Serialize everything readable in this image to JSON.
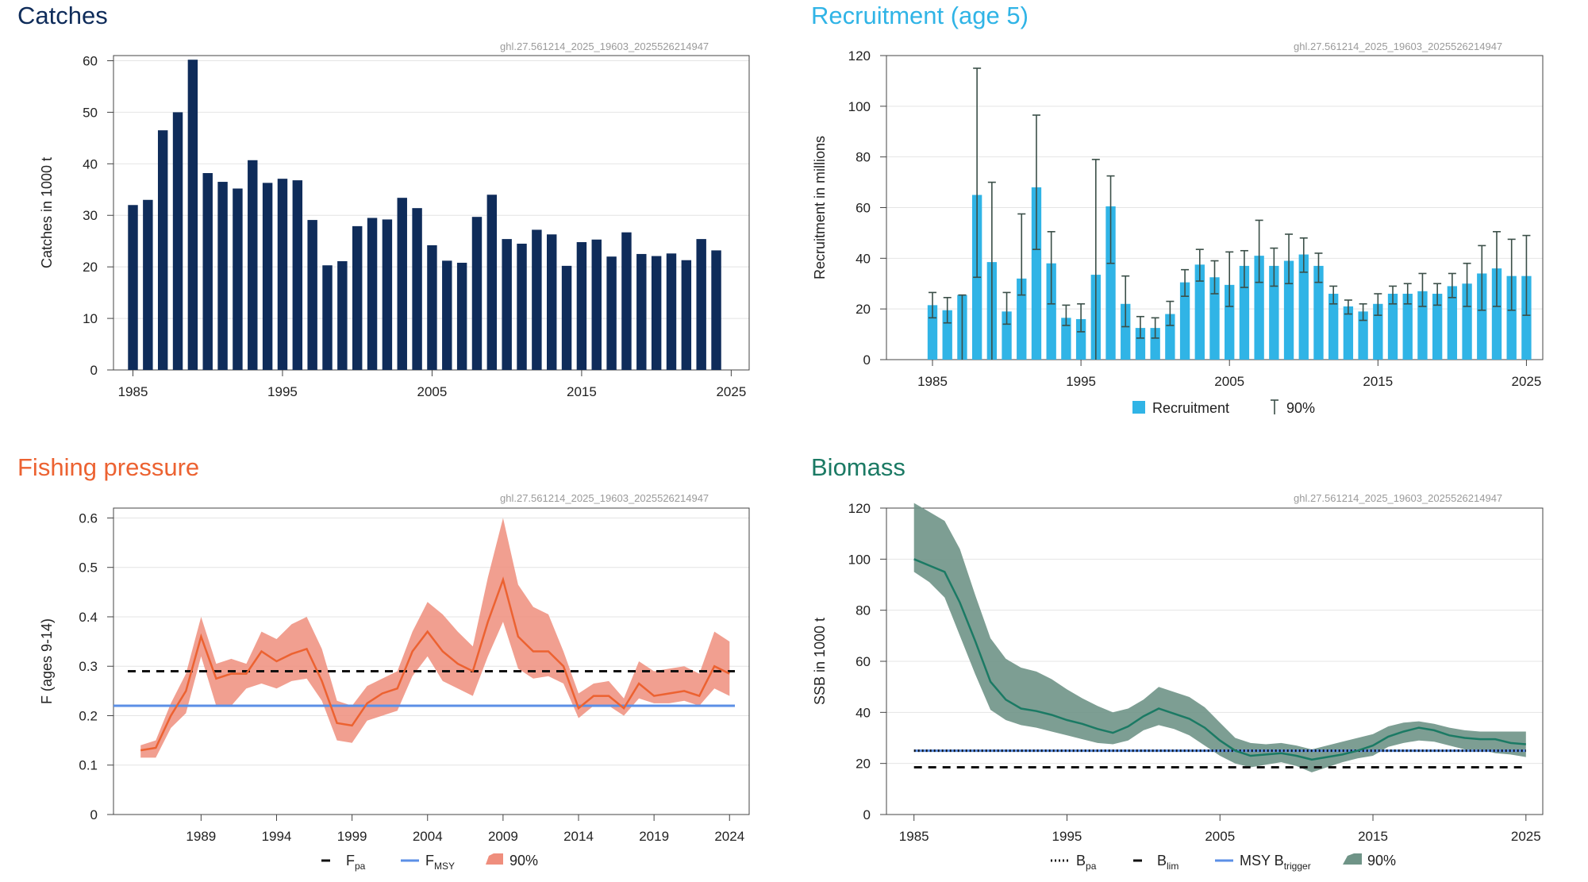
{
  "colors": {
    "catches": "#0f2c5a",
    "recruitment": "#30b4e6",
    "fishing": "#ec6231",
    "fishing_band": "#ef8e7d",
    "biomass": "#1b7a64",
    "biomass_band": "#6f9487",
    "fmsy": "#5b8fe6",
    "reference_dark": "#111111",
    "grid": "#e4e4e4",
    "frame": "#444444"
  },
  "charts": {
    "catches": {
      "title": "Catches",
      "stock_code": "ghl.27.561214_2025_19603_2025526214947",
      "ylabel": "Catches in 1000 t",
      "x_ticks": [
        "1985",
        "1995",
        "2005",
        "2015",
        "2025"
      ],
      "y_ticks": [
        "0",
        "10",
        "20",
        "30",
        "40",
        "50",
        "60"
      ]
    },
    "recruitment": {
      "title": "Recruitment (age 5)",
      "stock_code": "ghl.27.561214_2025_19603_2025526214947",
      "ylabel": "Recruitment in millions",
      "x_ticks": [
        "1985",
        "1995",
        "2005",
        "2015",
        "2025"
      ],
      "y_ticks": [
        "0",
        "20",
        "40",
        "60",
        "80",
        "100",
        "120"
      ],
      "legend": {
        "bar": "Recruitment",
        "errorbar": "90%"
      }
    },
    "fishing": {
      "title": "Fishing pressure",
      "stock_code": "ghl.27.561214_2025_19603_2025526214947",
      "ylabel": "F (ages 9-14)",
      "x_ticks": [
        "1989",
        "1994",
        "1999",
        "2004",
        "2009",
        "2014",
        "2019",
        "2024"
      ],
      "y_ticks": [
        "0",
        "0.1",
        "0.2",
        "0.3",
        "0.4",
        "0.5",
        "0.6"
      ],
      "legend": {
        "fpa_main": "F",
        "fpa_sub": "pa",
        "fmsy_main": "F",
        "fmsy_sub": "MSY",
        "band": "90%"
      }
    },
    "biomass": {
      "title": "Biomass",
      "stock_code": "ghl.27.561214_2025_19603_2025526214947",
      "ylabel": "SSB in 1000 t",
      "x_ticks": [
        "1985",
        "1995",
        "2005",
        "2015",
        "2025"
      ],
      "y_ticks": [
        "0",
        "20",
        "40",
        "60",
        "80",
        "100",
        "120"
      ],
      "legend": {
        "bpa_main": "B",
        "bpa_sub": "pa",
        "blim_main": "B",
        "blim_sub": "lim",
        "msy_main": "MSY B",
        "msy_sub": "trigger",
        "band": "90%"
      }
    }
  },
  "chart_data": [
    {
      "id": "catches",
      "type": "bar",
      "title": "Catches",
      "ylabel": "Catches in 1000 t",
      "xlim": [
        1983.7,
        2026.2
      ],
      "ylim": [
        0,
        61
      ],
      "x": [
        1985,
        1986,
        1987,
        1988,
        1989,
        1990,
        1991,
        1992,
        1993,
        1994,
        1995,
        1996,
        1997,
        1998,
        1999,
        2000,
        2001,
        2002,
        2003,
        2004,
        2005,
        2006,
        2007,
        2008,
        2009,
        2010,
        2011,
        2012,
        2013,
        2014,
        2015,
        2016,
        2017,
        2018,
        2019,
        2020,
        2021,
        2022,
        2023,
        2024
      ],
      "values": [
        32.0,
        33.0,
        46.5,
        50.0,
        60.2,
        38.2,
        36.5,
        35.2,
        40.7,
        36.3,
        37.1,
        36.8,
        29.1,
        20.3,
        21.1,
        27.9,
        29.5,
        29.2,
        33.4,
        31.4,
        24.2,
        21.2,
        20.8,
        29.7,
        34.0,
        25.4,
        24.5,
        27.2,
        26.3,
        20.2,
        24.8,
        25.3,
        22.0,
        26.7,
        22.5,
        22.1,
        22.6,
        21.3,
        25.4,
        23.2
      ],
      "grid": true
    },
    {
      "id": "recruitment",
      "type": "bar",
      "title": "Recruitment (age 5)",
      "ylabel": "Recruitment in millions",
      "xlim": [
        1981.9,
        2026.1
      ],
      "ylim": [
        0,
        120
      ],
      "x": [
        1985,
        1986,
        1987,
        1988,
        1989,
        1990,
        1991,
        1992,
        1993,
        1994,
        1995,
        1996,
        1997,
        1998,
        1999,
        2000,
        2001,
        2002,
        2003,
        2004,
        2005,
        2006,
        2007,
        2008,
        2009,
        2010,
        2011,
        2012,
        2013,
        2014,
        2015,
        2016,
        2017,
        2018,
        2019,
        2020,
        2021,
        2022,
        2023,
        2024,
        2025
      ],
      "values": [
        21.5,
        19.5,
        25.5,
        65,
        38.5,
        19,
        32,
        68,
        38,
        16.5,
        16,
        33.5,
        60.5,
        22,
        12.5,
        12.5,
        18,
        30.5,
        37.5,
        32.5,
        29.5,
        37,
        41,
        37,
        39,
        41.5,
        37,
        26,
        21,
        19,
        22,
        26,
        26,
        27,
        26,
        29,
        30,
        34,
        36,
        33,
        33
      ],
      "upper": [
        26.5,
        24.5,
        25.5,
        115,
        70,
        26.5,
        57.5,
        96.5,
        50.5,
        21.5,
        22,
        79,
        72.5,
        33,
        17,
        16.5,
        23,
        35.5,
        43.5,
        39,
        42.5,
        43,
        55,
        44,
        49.5,
        48,
        42,
        29,
        23.5,
        22,
        26,
        29,
        30,
        34,
        30,
        34,
        38,
        45,
        50.5,
        47.5,
        49
      ],
      "lower": [
        16.5,
        14.5,
        0,
        32.5,
        0,
        14,
        25.5,
        43.5,
        22,
        13.5,
        11,
        0,
        38,
        13,
        8.5,
        8.5,
        13.5,
        25,
        31,
        26,
        21,
        28.5,
        30.5,
        29,
        30,
        34.5,
        30.5,
        22,
        18,
        15.5,
        17.5,
        22,
        22,
        21,
        21.5,
        24.5,
        21,
        19.5,
        21,
        19.5,
        17.5
      ],
      "legend": [
        "Recruitment",
        "90%"
      ],
      "legend_position": "bottom",
      "grid": true
    },
    {
      "id": "fishing",
      "type": "line",
      "title": "Fishing pressure",
      "ylabel": "F (ages 9-14)",
      "xlim": [
        1983.2,
        2025.3
      ],
      "ylim": [
        0,
        0.62
      ],
      "x": [
        1985,
        1986,
        1987,
        1988,
        1989,
        1990,
        1991,
        1992,
        1993,
        1994,
        1995,
        1996,
        1997,
        1998,
        1999,
        2000,
        2001,
        2002,
        2003,
        2004,
        2005,
        2006,
        2007,
        2008,
        2009,
        2010,
        2011,
        2012,
        2013,
        2014,
        2015,
        2016,
        2017,
        2018,
        2019,
        2020,
        2021,
        2022,
        2023,
        2024
      ],
      "series": [
        {
          "name": "F",
          "values": [
            0.13,
            0.135,
            0.2,
            0.25,
            0.36,
            0.275,
            0.285,
            0.285,
            0.33,
            0.31,
            0.325,
            0.335,
            0.27,
            0.185,
            0.18,
            0.225,
            0.245,
            0.255,
            0.33,
            0.37,
            0.33,
            0.305,
            0.29,
            0.39,
            0.475,
            0.36,
            0.33,
            0.33,
            0.3,
            0.215,
            0.24,
            0.24,
            0.215,
            0.265,
            0.24,
            0.245,
            0.25,
            0.24,
            0.3,
            0.285
          ]
        },
        {
          "name": "90% upper",
          "values": [
            0.14,
            0.15,
            0.225,
            0.285,
            0.4,
            0.305,
            0.315,
            0.305,
            0.37,
            0.355,
            0.385,
            0.4,
            0.335,
            0.23,
            0.22,
            0.26,
            0.275,
            0.29,
            0.37,
            0.43,
            0.405,
            0.37,
            0.34,
            0.48,
            0.6,
            0.465,
            0.42,
            0.405,
            0.33,
            0.245,
            0.265,
            0.27,
            0.235,
            0.31,
            0.29,
            0.295,
            0.3,
            0.285,
            0.37,
            0.35
          ]
        },
        {
          "name": "90% lower",
          "values": [
            0.115,
            0.115,
            0.175,
            0.205,
            0.32,
            0.22,
            0.22,
            0.255,
            0.265,
            0.255,
            0.27,
            0.275,
            0.23,
            0.15,
            0.145,
            0.19,
            0.2,
            0.21,
            0.28,
            0.32,
            0.27,
            0.255,
            0.24,
            0.32,
            0.39,
            0.295,
            0.275,
            0.28,
            0.265,
            0.195,
            0.22,
            0.22,
            0.2,
            0.235,
            0.225,
            0.225,
            0.23,
            0.22,
            0.255,
            0.24
          ]
        }
      ],
      "reference_lines": [
        {
          "name": "Fpa",
          "value": 0.29,
          "style": "dashed"
        },
        {
          "name": "FMSY",
          "value": 0.22,
          "style": "solid"
        }
      ],
      "legend": [
        "Fpa",
        "FMSY",
        "90%"
      ],
      "legend_position": "bottom",
      "grid": true
    },
    {
      "id": "biomass",
      "type": "area",
      "title": "Biomass",
      "ylabel": "SSB in 1000 t",
      "xlim": [
        1983.2,
        2026.1
      ],
      "ylim": [
        0,
        120
      ],
      "x": [
        1985,
        1986,
        1987,
        1988,
        1989,
        1990,
        1991,
        1992,
        1993,
        1994,
        1995,
        1996,
        1997,
        1998,
        1999,
        2000,
        2001,
        2002,
        2003,
        2004,
        2005,
        2006,
        2007,
        2008,
        2009,
        2010,
        2011,
        2012,
        2013,
        2014,
        2015,
        2016,
        2017,
        2018,
        2019,
        2020,
        2021,
        2022,
        2023,
        2024,
        2025
      ],
      "series": [
        {
          "name": "SSB",
          "values": [
            100,
            97.5,
            95,
            83,
            68,
            52,
            45,
            41.5,
            40.5,
            39,
            37,
            35.5,
            33.5,
            32,
            34.5,
            38.5,
            41.5,
            39.5,
            37.5,
            34,
            29,
            25,
            23,
            23.5,
            24,
            23,
            21.5,
            22.5,
            23.5,
            25,
            27,
            30.5,
            32.5,
            34,
            33,
            31,
            30,
            29.5,
            29.5,
            28,
            27.5
          ]
        },
        {
          "name": "90% upper",
          "values": [
            122,
            118.5,
            115,
            104,
            86,
            69,
            61,
            57.5,
            56,
            53,
            49,
            45.5,
            42.5,
            40,
            41.5,
            45,
            50,
            48,
            46,
            42,
            36,
            30,
            28,
            27.5,
            28,
            27,
            25.5,
            27,
            28.5,
            30,
            31.5,
            34.5,
            36,
            36.5,
            35.5,
            34,
            33,
            32.5,
            32.5,
            32.5,
            32.5
          ]
        },
        {
          "name": "90% lower",
          "values": [
            95,
            91,
            85,
            70,
            55,
            41,
            37,
            35,
            34,
            32.5,
            31,
            29.5,
            28,
            27.5,
            29,
            33,
            35,
            33.5,
            31,
            27,
            23,
            20,
            18.5,
            19.5,
            20.5,
            19,
            16.5,
            18.5,
            20.5,
            22,
            23,
            26.5,
            28,
            29,
            28.5,
            27,
            25.5,
            25.5,
            24,
            23.5,
            22.5
          ]
        }
      ],
      "reference_lines": [
        {
          "name": "Bpa",
          "value": 25,
          "style": "dotted"
        },
        {
          "name": "Blim",
          "value": 18.5,
          "style": "dashed"
        },
        {
          "name": "MSY Btrigger",
          "value": 25,
          "style": "solid"
        }
      ],
      "legend": [
        "Bpa",
        "Blim",
        "MSY Btrigger",
        "90%"
      ],
      "legend_position": "bottom",
      "grid": true
    }
  ]
}
